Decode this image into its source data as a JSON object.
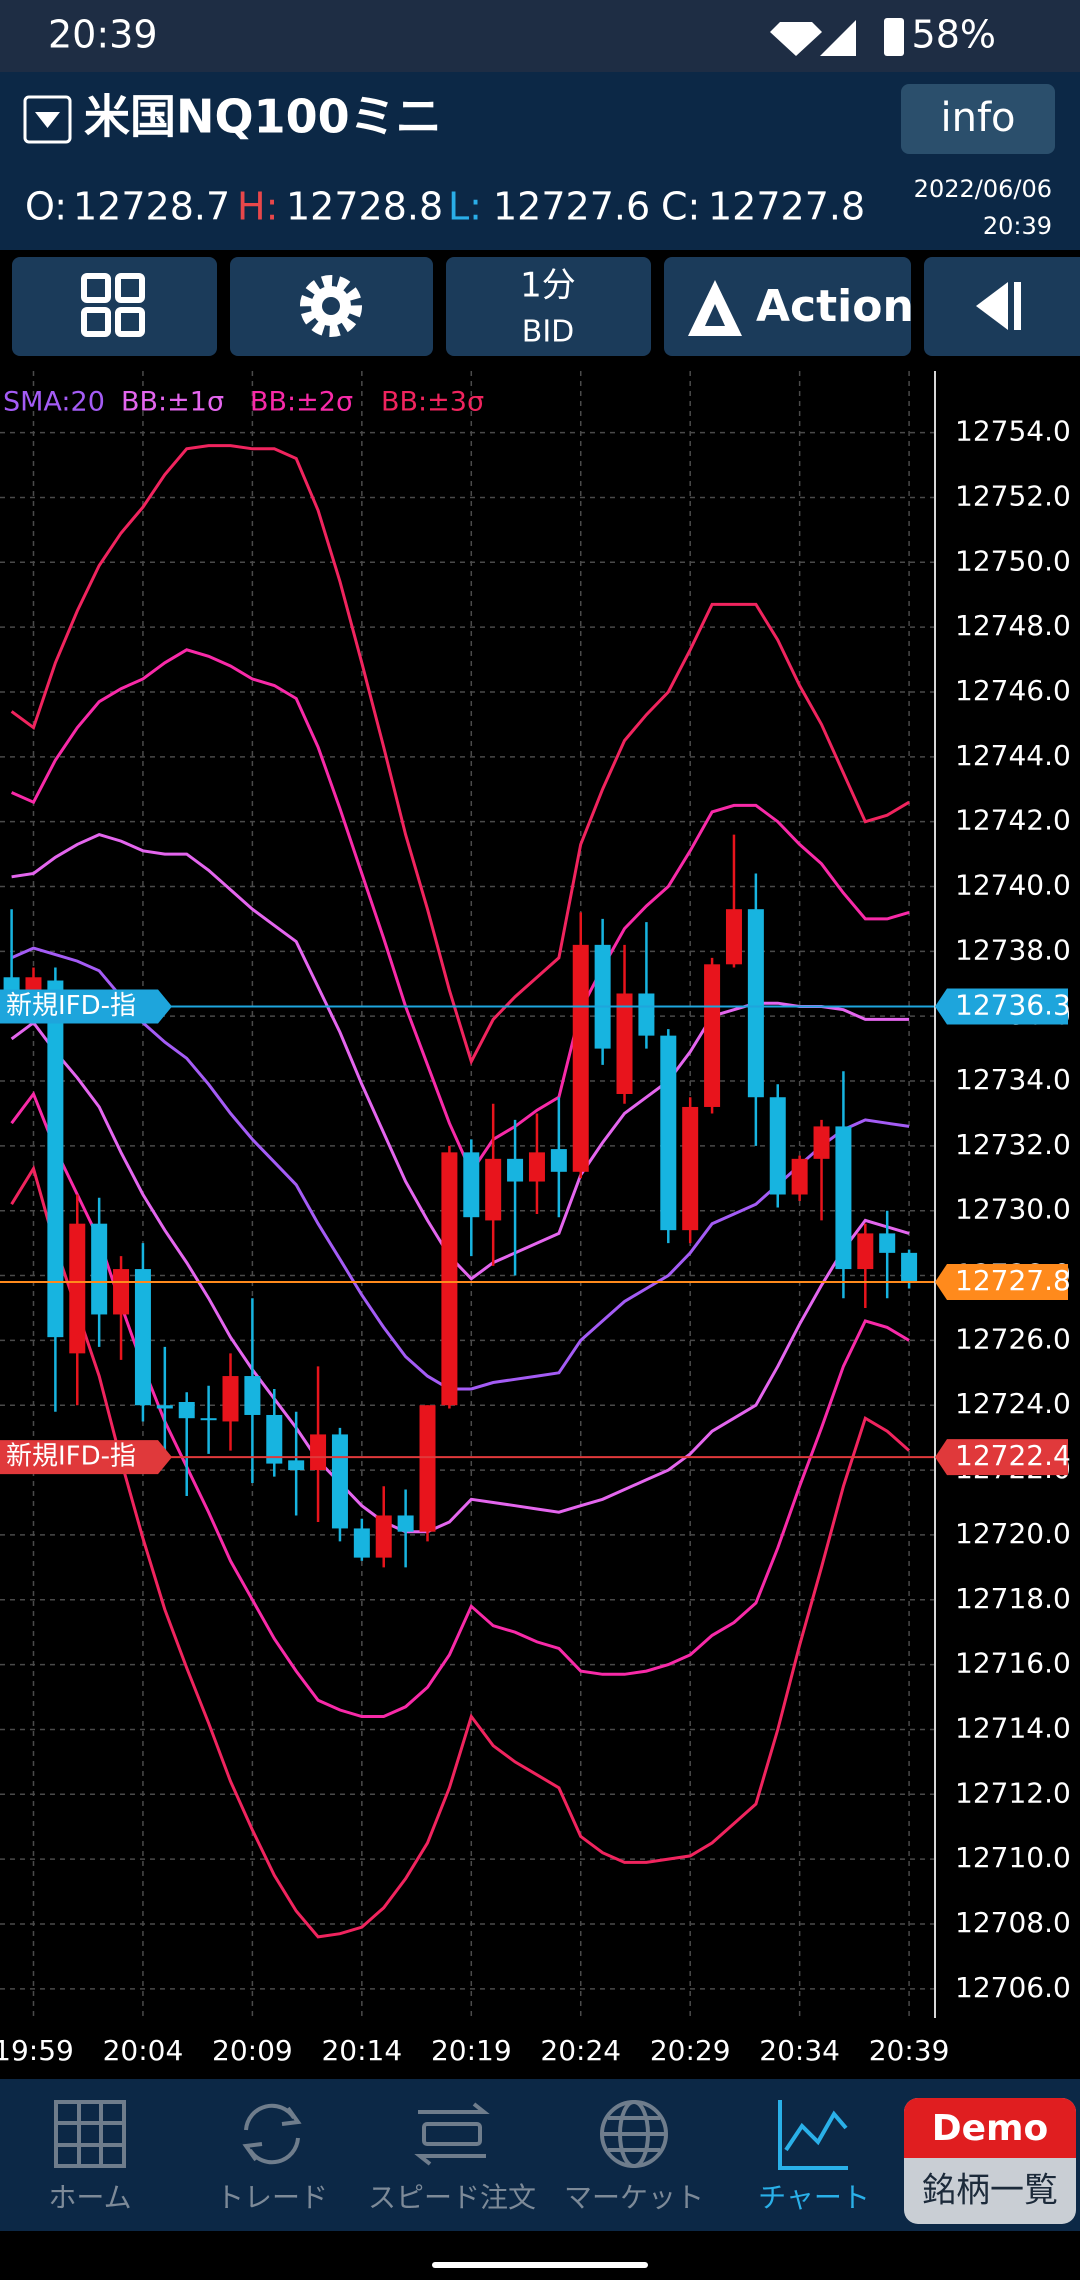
{
  "status_bar": {
    "time": "20:39",
    "battery": "58%"
  },
  "header": {
    "title": "米国NQ100ミニ",
    "info_button": "info",
    "ohlc": [
      {
        "label": "O:",
        "value": 12728.7
      },
      {
        "label": "H:",
        "value": 12728.8
      },
      {
        "label": "L:",
        "value": 12727.6
      },
      {
        "label": "C:",
        "value": 12727.8
      }
    ],
    "date": "2022/06/06",
    "time": "20:39"
  },
  "toolbar": {
    "timeframe": "1分",
    "price_type": "BID",
    "action": "Action"
  },
  "chart_data": {
    "type": "candlestick",
    "categories": [
      null,
      "19:59",
      null,
      null,
      null,
      null,
      "20:04",
      null,
      null,
      null,
      null,
      "20:09",
      null,
      null,
      null,
      null,
      "20:14",
      null,
      null,
      null,
      null,
      "20:19",
      null,
      null,
      null,
      null,
      "20:24",
      null,
      null,
      null,
      null,
      "20:29",
      null,
      null,
      null,
      null,
      "20:34",
      null,
      null,
      null,
      null,
      "20:39"
    ],
    "open": [
      12737.2,
      12736.8,
      12737.1,
      12725.6,
      12729.6,
      12726.8,
      12728.2,
      12724.0,
      12724.1,
      12723.6,
      12723.5,
      12724.9,
      12723.7,
      12722.3,
      12722.0,
      12723.1,
      12720.2,
      12719.3,
      12720.6,
      12720.1,
      12724.0,
      12731.8,
      12729.7,
      12731.6,
      12730.9,
      12731.9,
      12731.2,
      12738.2,
      12733.6,
      12736.7,
      12735.4,
      12729.4,
      12733.2,
      12737.6,
      12739.3,
      12733.5,
      12730.5,
      12731.6,
      12732.6,
      12728.2,
      12729.3,
      12728.7
    ],
    "high": [
      12739.3,
      12737.5,
      12737.5,
      12730.5,
      12730.4,
      12728.6,
      12729.0,
      12725.8,
      12724.4,
      12724.6,
      12725.6,
      12727.3,
      12724.5,
      12723.8,
      12725.2,
      12723.3,
      12720.5,
      12721.5,
      12721.4,
      12724.0,
      12732.0,
      12732.2,
      12733.3,
      12732.8,
      12733.0,
      12733.5,
      12739.2,
      12739.0,
      12738.2,
      12738.9,
      12735.6,
      12733.5,
      12737.8,
      12741.6,
      12740.4,
      12733.9,
      12731.7,
      12732.8,
      12734.3,
      12729.6,
      12730.0,
      12728.8
    ],
    "low": [
      12736.0,
      12736.3,
      12723.8,
      12724.0,
      12725.8,
      12725.4,
      12723.5,
      12722.3,
      12721.2,
      12722.5,
      12722.6,
      12721.6,
      12721.8,
      12720.6,
      12720.4,
      12719.8,
      12719.2,
      12719.0,
      12719.0,
      12719.8,
      12723.9,
      12728.6,
      12728.3,
      12728.0,
      12729.9,
      12729.8,
      12731.0,
      12734.5,
      12733.3,
      12735.0,
      12729.0,
      12729.0,
      12733.0,
      12737.5,
      12732.0,
      12730.1,
      12730.3,
      12729.7,
      12727.3,
      12727.0,
      12727.3,
      12727.6
    ],
    "close": [
      12736.8,
      12737.2,
      12726.1,
      12729.6,
      12726.8,
      12728.2,
      12724.0,
      12723.9,
      12723.6,
      12723.6,
      12724.9,
      12723.7,
      12722.2,
      12722.0,
      12723.1,
      12720.2,
      12719.3,
      12720.6,
      12720.1,
      12724.0,
      12731.8,
      12729.8,
      12731.6,
      12730.9,
      12731.8,
      12731.2,
      12738.2,
      12735.0,
      12736.7,
      12735.4,
      12729.4,
      12733.2,
      12737.6,
      12739.3,
      12733.5,
      12730.5,
      12731.6,
      12732.6,
      12728.2,
      12729.3,
      12728.7,
      12727.8
    ],
    "up_color": "#e8141c",
    "down_color": "#17b4e0",
    "indicators": [
      {
        "name": "SMA:20",
        "color": "#a45cf5",
        "lines": [
          [
            12737.8,
            12738.1,
            12737.9,
            12737.7,
            12737.4,
            12736.6,
            12735.8,
            12735.2,
            12734.7,
            12733.9,
            12733.0,
            12732.2,
            12731.5,
            12730.8,
            12729.6,
            12728.5,
            12727.4,
            12726.4,
            12725.5,
            12724.9,
            12724.5,
            12724.5,
            12724.7,
            12724.8,
            12724.9,
            12725.0,
            12726.0,
            12726.6,
            12727.2,
            12727.6,
            12728.0,
            12728.7,
            12729.6,
            12729.9,
            12730.2,
            12730.8,
            12731.4,
            12732.0,
            12732.5,
            12732.8,
            12732.7,
            12732.6
          ]
        ]
      },
      {
        "name": "BB:±1σ",
        "color": "#e466ee",
        "lines": [
          [
            12740.3,
            12740.4,
            12740.9,
            12741.3,
            12741.6,
            12741.4,
            12741.1,
            12741.0,
            12741.0,
            12740.5,
            12739.9,
            12739.3,
            12738.8,
            12738.3,
            12736.9,
            12735.5,
            12733.9,
            12732.4,
            12730.9,
            12729.7,
            12728.6,
            12727.9,
            12728.4,
            12728.7,
            12729.0,
            12729.3,
            12731.1,
            12732.1,
            12733.0,
            12733.5,
            12734.0,
            12734.9,
            12736.0,
            12736.2,
            12736.4,
            12736.4,
            12736.3,
            12736.3,
            12736.2,
            12735.9,
            12735.9,
            12735.9
          ],
          [
            12735.3,
            12735.8,
            12734.9,
            12734.1,
            12733.2,
            12731.8,
            12730.5,
            12729.4,
            12728.4,
            12727.3,
            12726.1,
            12725.1,
            12724.2,
            12723.3,
            12722.3,
            12721.6,
            12720.9,
            12720.4,
            12720.1,
            12720.1,
            12720.4,
            12721.1,
            12721.0,
            12720.9,
            12720.8,
            12720.7,
            12720.9,
            12721.1,
            12721.4,
            12721.7,
            12722.0,
            12722.5,
            12723.2,
            12723.6,
            12724.0,
            12725.2,
            12726.5,
            12727.7,
            12728.8,
            12729.7,
            12729.5,
            12729.3
          ]
        ]
      },
      {
        "name": "BB:±2σ",
        "color": "#f82aa8",
        "lines": [
          [
            12742.9,
            12742.6,
            12743.9,
            12744.9,
            12745.7,
            12746.1,
            12746.4,
            12746.9,
            12747.3,
            12747.1,
            12746.8,
            12746.4,
            12746.2,
            12745.8,
            12744.3,
            12742.4,
            12740.4,
            12738.4,
            12736.3,
            12734.5,
            12732.7,
            12731.2,
            12732.2,
            12732.6,
            12733.1,
            12733.5,
            12736.2,
            12737.5,
            12738.7,
            12739.4,
            12740.0,
            12741.1,
            12742.3,
            12742.5,
            12742.5,
            12742.0,
            12741.3,
            12740.7,
            12739.8,
            12739.0,
            12739.0,
            12739.2
          ],
          [
            12732.7,
            12733.6,
            12731.9,
            12730.5,
            12729.1,
            12727.1,
            12725.2,
            12723.5,
            12722.1,
            12720.7,
            12719.2,
            12718.0,
            12716.8,
            12715.8,
            12714.9,
            12714.6,
            12714.4,
            12714.4,
            12714.7,
            12715.3,
            12716.3,
            12717.8,
            12717.2,
            12717.0,
            12716.7,
            12716.5,
            12715.8,
            12715.7,
            12715.7,
            12715.8,
            12716.0,
            12716.3,
            12716.9,
            12717.3,
            12717.9,
            12719.6,
            12721.5,
            12723.3,
            12725.2,
            12726.6,
            12726.4,
            12726.0
          ]
        ]
      },
      {
        "name": "BB:±3σ",
        "color": "#f0245e",
        "lines": [
          [
            12745.4,
            12744.9,
            12746.9,
            12748.5,
            12749.9,
            12750.9,
            12751.7,
            12752.7,
            12753.5,
            12753.6,
            12753.6,
            12753.5,
            12753.5,
            12753.2,
            12751.6,
            12749.4,
            12746.9,
            12744.3,
            12741.6,
            12739.3,
            12736.8,
            12734.6,
            12735.9,
            12736.6,
            12737.2,
            12737.8,
            12741.3,
            12743.0,
            12744.5,
            12745.3,
            12746.0,
            12747.3,
            12748.7,
            12748.7,
            12748.7,
            12747.6,
            12746.2,
            12745.0,
            12743.5,
            12742.0,
            12742.2,
            12742.6
          ],
          [
            12730.2,
            12731.3,
            12728.9,
            12726.9,
            12724.9,
            12722.3,
            12719.9,
            12717.7,
            12715.9,
            12714.2,
            12712.4,
            12710.9,
            12709.5,
            12708.4,
            12707.6,
            12707.7,
            12707.9,
            12708.5,
            12709.4,
            12710.5,
            12712.2,
            12714.4,
            12713.5,
            12713.0,
            12712.6,
            12712.2,
            12710.7,
            12710.2,
            12709.9,
            12709.9,
            12710.0,
            12710.1,
            12710.5,
            12711.1,
            12711.7,
            12714.0,
            12716.6,
            12719.0,
            12721.5,
            12723.6,
            12723.2,
            12722.6
          ]
        ]
      }
    ],
    "ylim": [
      12705.1,
      12755.9
    ],
    "yticks": [
      {
        "value": 12706,
        "label": "12706.0"
      },
      {
        "value": 12708,
        "label": "12708.0"
      },
      {
        "value": 12710,
        "label": "12710.0"
      },
      {
        "value": 12712,
        "label": "12712.0"
      },
      {
        "value": 12714,
        "label": "12714.0"
      },
      {
        "value": 12716,
        "label": "12716.0"
      },
      {
        "value": 12718,
        "label": "12718.0"
      },
      {
        "value": 12720,
        "label": "12720.0"
      },
      {
        "value": 12722,
        "label": "12722.0"
      },
      {
        "value": 12724,
        "label": "12724.0"
      },
      {
        "value": 12726,
        "label": "12726.0"
      },
      {
        "value": 12728,
        "label": "12728.0"
      },
      {
        "value": 12730,
        "label": "12730.0"
      },
      {
        "value": 12732,
        "label": "12732.0"
      },
      {
        "value": 12734,
        "label": "12734.0"
      },
      {
        "value": 12736,
        "label": "12736.0"
      },
      {
        "value": 12738,
        "label": "12738.0"
      },
      {
        "value": 12740,
        "label": "12740.0"
      },
      {
        "value": 12742,
        "label": "12742.0"
      },
      {
        "value": 12744,
        "label": "12744.0"
      },
      {
        "value": 12746,
        "label": "12746.0"
      },
      {
        "value": 12748,
        "label": "12748.0"
      },
      {
        "value": 12750,
        "label": "12750.0"
      },
      {
        "value": 12752,
        "label": "12752.0"
      },
      {
        "value": 12754,
        "label": "12754.0"
      }
    ],
    "grid": true,
    "price_lines": [
      {
        "label": "新規IFD-指",
        "value": 12736.3,
        "color": "#1ea5dc"
      },
      {
        "label": "新規IFD-指",
        "value": 12722.4,
        "color": "#e0393b"
      }
    ],
    "last_price": {
      "value": 12727.8,
      "color": "#ff8a1c"
    }
  },
  "bottom_nav": {
    "items": [
      "ホーム",
      "トレード",
      "スピード注文",
      "マーケット",
      "チャート"
    ],
    "demo": "Demo",
    "symbol_list": "銘柄一覧"
  }
}
